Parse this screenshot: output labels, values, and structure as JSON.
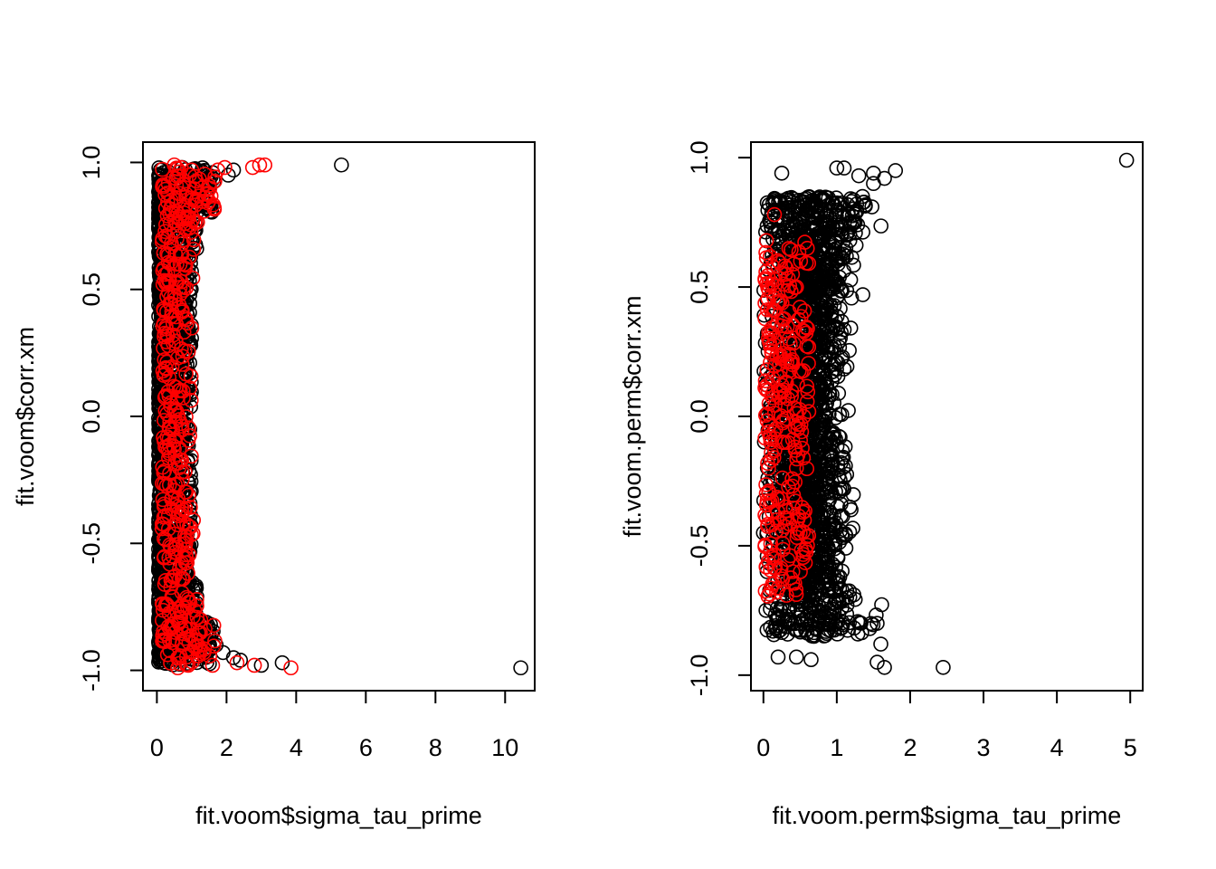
{
  "colors": {
    "black": "#000000",
    "red": "#ff0000",
    "background": "#ffffff"
  },
  "chart_data": [
    {
      "type": "scatter",
      "title": "",
      "xlabel": "fit.voom$sigma_tau_prime",
      "ylabel": "fit.voom$corr.xm",
      "xlim": [
        -0.4,
        10.85
      ],
      "ylim": [
        -1.08,
        1.08
      ],
      "xticks": [
        0,
        2,
        4,
        6,
        8,
        10
      ],
      "xtick_labels": [
        "0",
        "2",
        "4",
        "6",
        "8",
        "10"
      ],
      "yticks": [
        -1.0,
        -0.5,
        0.0,
        0.5,
        1.0
      ],
      "ytick_labels": [
        "-1.0",
        "-0.5",
        "0.0",
        "0.5",
        "1.0"
      ],
      "grid": false,
      "legend": "none",
      "series": [
        {
          "color": "black",
          "marker": "open-circle",
          "note_points": "dense cloud x in [0,1.2] for |y|<0.7, tails spreading to x~2.4 near y=+-1",
          "points": [
            [
              5.3,
              0.99
            ],
            [
              10.45,
              -0.99
            ],
            [
              3.0,
              -0.98
            ],
            [
              3.6,
              -0.97
            ],
            [
              2.05,
              0.95
            ],
            [
              2.2,
              0.97
            ],
            [
              2.4,
              -0.96
            ],
            [
              2.2,
              -0.95
            ],
            [
              1.9,
              -0.93
            ],
            [
              1.7,
              -0.9
            ],
            [
              1.6,
              0.96
            ],
            [
              1.4,
              0.92
            ],
            [
              1.5,
              -0.85
            ],
            [
              1.3,
              -0.88
            ],
            [
              1.2,
              0.9
            ],
            [
              0.1,
              0.97
            ],
            [
              0.2,
              -0.97
            ]
          ]
        },
        {
          "color": "red",
          "marker": "open-circle",
          "points": [
            [
              2.75,
              0.98
            ],
            [
              2.95,
              0.99
            ],
            [
              3.1,
              0.99
            ],
            [
              2.8,
              -0.98
            ],
            [
              3.85,
              -0.99
            ],
            [
              2.3,
              -0.97
            ],
            [
              1.95,
              0.98
            ],
            [
              1.75,
              0.97
            ],
            [
              1.6,
              -0.98
            ],
            [
              0.5,
              0.99
            ],
            [
              0.7,
              0.98
            ],
            [
              1.0,
              0.97
            ],
            [
              0.6,
              -0.99
            ],
            [
              0.9,
              -0.98
            ],
            [
              0.5,
              -0.35
            ],
            [
              0.75,
              0.1
            ],
            [
              0.65,
              -0.6
            ],
            [
              0.8,
              0.6
            ],
            [
              0.9,
              -0.72
            ],
            [
              0.55,
              0.85
            ],
            [
              0.45,
              -0.55
            ]
          ]
        }
      ]
    },
    {
      "type": "scatter",
      "title": "",
      "xlabel": "fit.voom.perm$sigma_tau_prime",
      "ylabel": "fit.voom.perm$corr.xm",
      "xlim": [
        -0.17,
        5.17
      ],
      "ylim": [
        -1.06,
        1.06
      ],
      "xticks": [
        0,
        1,
        2,
        3,
        4,
        5
      ],
      "xtick_labels": [
        "0",
        "1",
        "2",
        "3",
        "4",
        "5"
      ],
      "yticks": [
        -1.0,
        -0.5,
        0.0,
        0.5,
        1.0
      ],
      "ytick_labels": [
        "-1.0",
        "-0.5",
        "0.0",
        "0.5",
        "1.0"
      ],
      "grid": false,
      "legend": "none",
      "series": [
        {
          "color": "black",
          "marker": "open-circle",
          "note_points": "dense cloud x in [0,1.3] for |y|<0.8, spread to x~1.8 near y=+-0.9",
          "points": [
            [
              4.95,
              0.99
            ],
            [
              2.45,
              -0.97
            ],
            [
              1.65,
              -0.97
            ],
            [
              1.8,
              0.95
            ],
            [
              1.55,
              -0.95
            ],
            [
              1.6,
              -0.88
            ],
            [
              1.55,
              -0.8
            ],
            [
              1.45,
              -0.82
            ],
            [
              1.5,
              0.94
            ],
            [
              1.5,
              0.9
            ],
            [
              1.65,
              0.92
            ],
            [
              1.35,
              0.85
            ],
            [
              1.25,
              0.75
            ],
            [
              1.3,
              0.93
            ],
            [
              1.1,
              0.96
            ],
            [
              1.0,
              0.96
            ],
            [
              0.25,
              0.94
            ],
            [
              0.2,
              -0.93
            ],
            [
              0.65,
              -0.94
            ],
            [
              0.45,
              -0.93
            ],
            [
              0.1,
              0.75
            ],
            [
              0.05,
              0.45
            ],
            [
              0.0,
              -0.45
            ],
            [
              0.05,
              -0.6
            ],
            [
              0.95,
              -0.42
            ]
          ]
        },
        {
          "color": "red",
          "marker": "open-circle",
          "points": [
            [
              0.15,
              0.78
            ],
            [
              0.2,
              0.6
            ],
            [
              0.45,
              0.5
            ],
            [
              0.05,
              0.18
            ],
            [
              0.4,
              0.2
            ],
            [
              0.45,
              -0.2
            ],
            [
              0.2,
              -0.32
            ],
            [
              0.3,
              -0.35
            ],
            [
              0.15,
              -0.55
            ],
            [
              0.5,
              -0.45
            ],
            [
              0.35,
              0.3
            ],
            [
              0.1,
              -0.1
            ],
            [
              0.55,
              0.0
            ],
            [
              0.25,
              0.35
            ],
            [
              0.4,
              -0.6
            ]
          ]
        }
      ]
    }
  ]
}
